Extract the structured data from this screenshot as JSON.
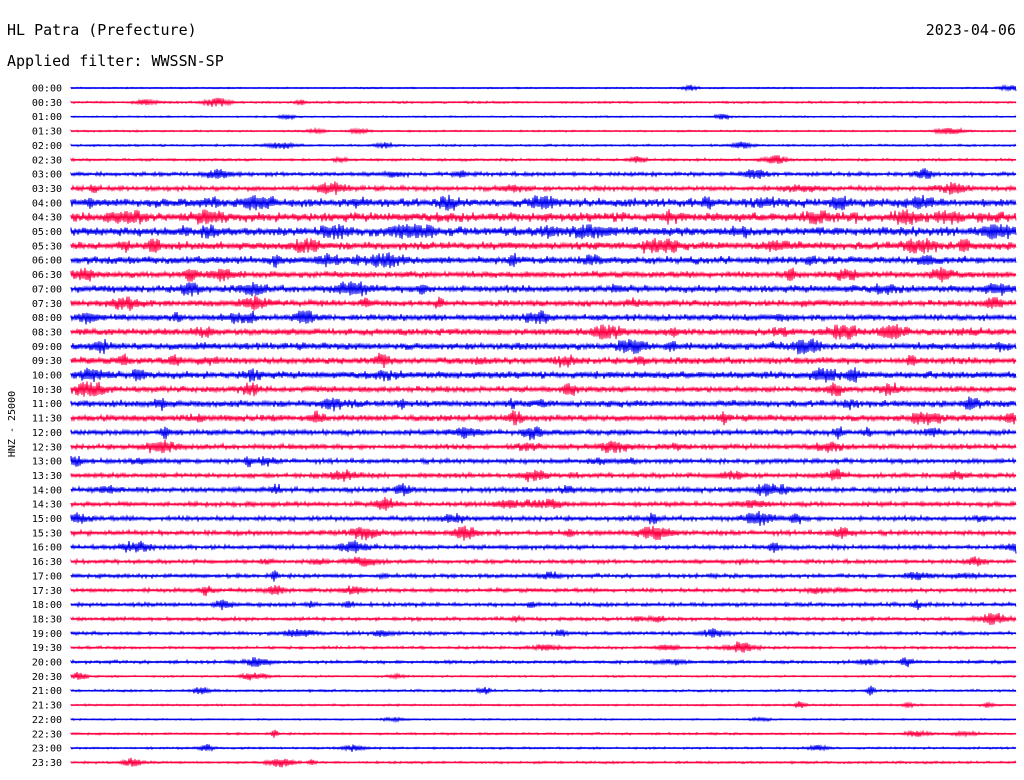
{
  "header": {
    "station": "HL Patra (Prefecture)",
    "date": "2023-04-06",
    "filter_label": "Applied filter: WWSSN-SP"
  },
  "chart_data": {
    "type": "helicorder",
    "ylabel": "HNZ - 25000",
    "trace_colors": [
      "#0000ee",
      "#ff0044"
    ],
    "rows": [
      {
        "time": "00:00",
        "activity": 0.05
      },
      {
        "time": "00:30",
        "activity": 0.12
      },
      {
        "time": "01:00",
        "activity": 0.06
      },
      {
        "time": "01:30",
        "activity": 0.08
      },
      {
        "time": "02:00",
        "activity": 0.12
      },
      {
        "time": "02:30",
        "activity": 0.18
      },
      {
        "time": "03:00",
        "activity": 0.35
      },
      {
        "time": "03:30",
        "activity": 0.45
      },
      {
        "time": "04:00",
        "activity": 0.95
      },
      {
        "time": "04:30",
        "activity": 1.0
      },
      {
        "time": "05:00",
        "activity": 1.0
      },
      {
        "time": "05:30",
        "activity": 0.85
      },
      {
        "time": "06:00",
        "activity": 0.8
      },
      {
        "time": "06:30",
        "activity": 0.65
      },
      {
        "time": "07:00",
        "activity": 0.75
      },
      {
        "time": "07:30",
        "activity": 0.6
      },
      {
        "time": "08:00",
        "activity": 0.65
      },
      {
        "time": "08:30",
        "activity": 0.7
      },
      {
        "time": "09:00",
        "activity": 0.75
      },
      {
        "time": "09:30",
        "activity": 0.7
      },
      {
        "time": "10:00",
        "activity": 0.75
      },
      {
        "time": "10:30",
        "activity": 0.6
      },
      {
        "time": "11:00",
        "activity": 0.7
      },
      {
        "time": "11:30",
        "activity": 0.65
      },
      {
        "time": "12:00",
        "activity": 0.55
      },
      {
        "time": "12:30",
        "activity": 0.5
      },
      {
        "time": "13:00",
        "activity": 0.45
      },
      {
        "time": "13:30",
        "activity": 0.45
      },
      {
        "time": "14:00",
        "activity": 0.5
      },
      {
        "time": "14:30",
        "activity": 0.45
      },
      {
        "time": "15:00",
        "activity": 0.45
      },
      {
        "time": "15:30",
        "activity": 0.45
      },
      {
        "time": "16:00",
        "activity": 0.4
      },
      {
        "time": "16:30",
        "activity": 0.35
      },
      {
        "time": "17:00",
        "activity": 0.35
      },
      {
        "time": "17:30",
        "activity": 0.35
      },
      {
        "time": "18:00",
        "activity": 0.35
      },
      {
        "time": "18:30",
        "activity": 0.3
      },
      {
        "time": "19:00",
        "activity": 0.3
      },
      {
        "time": "19:30",
        "activity": 0.2
      },
      {
        "time": "20:00",
        "activity": 0.25
      },
      {
        "time": "20:30",
        "activity": 0.1
      },
      {
        "time": "21:00",
        "activity": 0.15
      },
      {
        "time": "21:30",
        "activity": 0.1
      },
      {
        "time": "22:00",
        "activity": 0.06
      },
      {
        "time": "22:30",
        "activity": 0.12
      },
      {
        "time": "23:00",
        "activity": 0.12
      },
      {
        "time": "23:30",
        "activity": 0.15
      }
    ]
  }
}
